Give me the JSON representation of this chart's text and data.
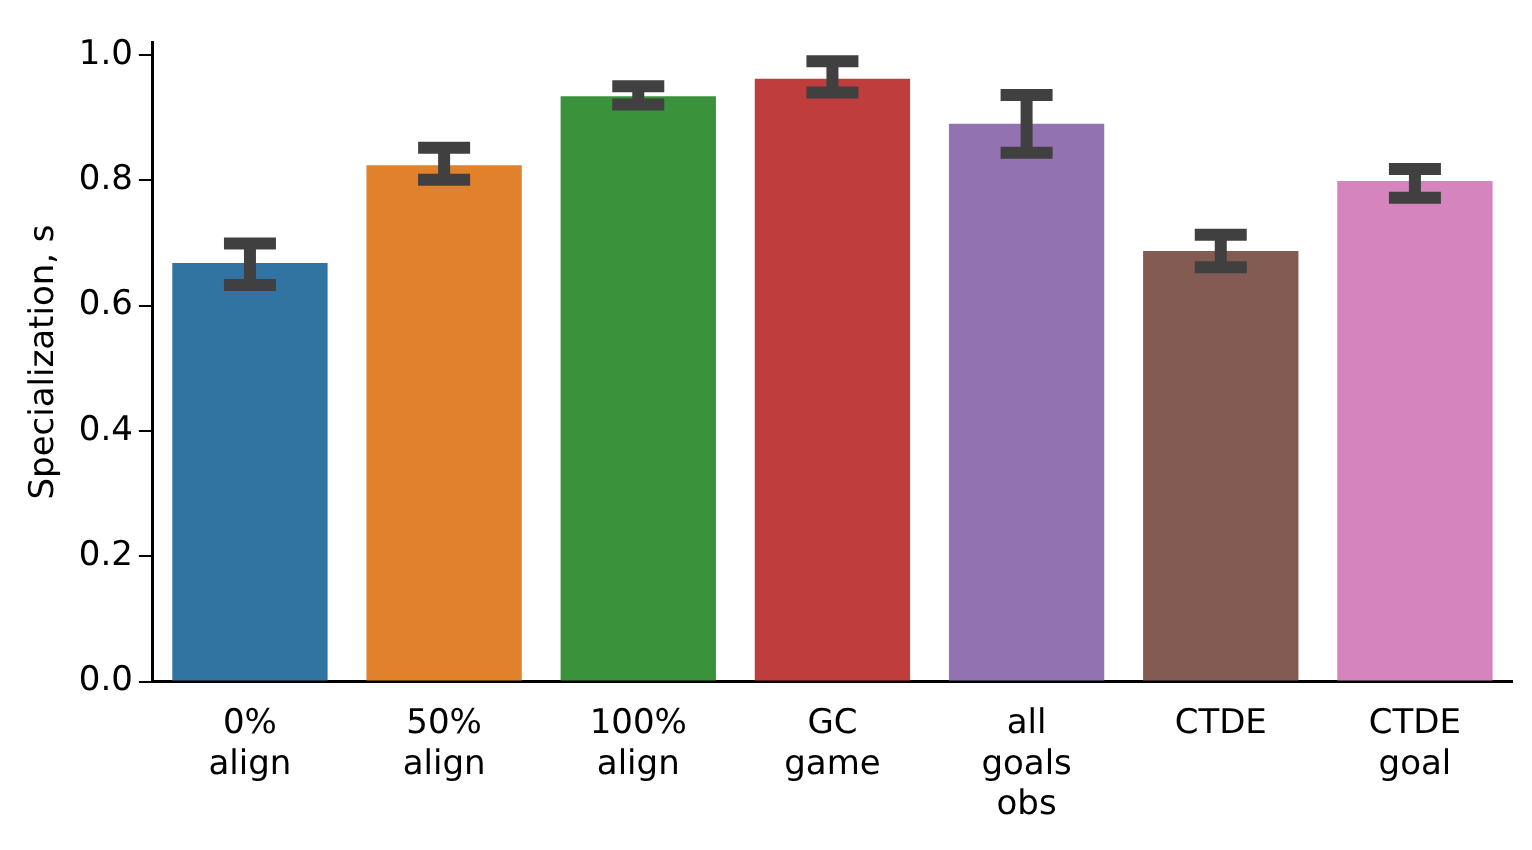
{
  "chart_data": {
    "type": "bar",
    "ylabel": "Specialization, s",
    "categories": [
      "0%\nalign",
      "50%\nalign",
      "100%\nalign",
      "GC\ngame",
      "all\ngoals\nobs",
      "CTDE",
      "CTDE\ngoal"
    ],
    "values": [
      0.668,
      0.824,
      0.934,
      0.962,
      0.89,
      0.687,
      0.799
    ],
    "colors": [
      "#3274a1",
      "#e1812c",
      "#3a923a",
      "#c03d3e",
      "#9372b2",
      "#845b53",
      "#d684bd"
    ],
    "errors": [
      [
        0.633,
        0.699
      ],
      [
        0.801,
        0.852
      ],
      [
        0.921,
        0.95
      ],
      [
        0.94,
        0.99
      ],
      [
        0.844,
        0.936
      ],
      [
        0.661,
        0.713
      ],
      [
        0.772,
        0.818
      ]
    ],
    "ylim": [
      0,
      1.02
    ],
    "yticks": [
      {
        "value": 0,
        "label": "0.0"
      },
      0.2,
      0.4,
      0.6,
      0.8,
      {
        "value": 1,
        "label": "1.0"
      }
    ],
    "grid": false
  }
}
